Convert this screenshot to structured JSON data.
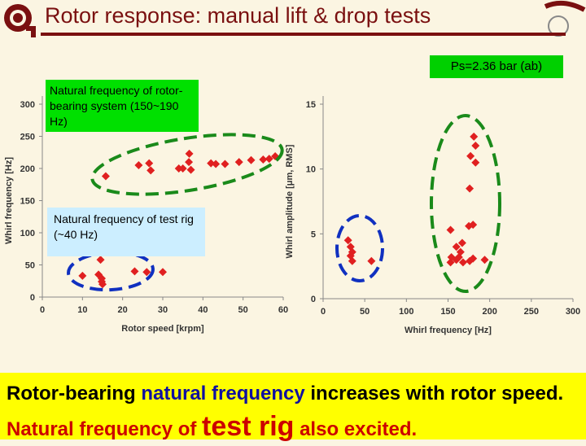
{
  "title": "Rotor response: manual lift & drop tests",
  "ps_label": "Ps=2.36 bar (ab)",
  "annotation_natural": "Natural frequency of rotor-bearing system (150~190 Hz)",
  "annotation_rig": "Natural frequency of test rig (~40 Hz)",
  "conclusion": {
    "part1": "Rotor-bearing ",
    "part2": "natural frequency",
    "part3": " increases with rotor speed. ",
    "part4": "Natural frequency of ",
    "part5": "test rig",
    "part6": " also excited."
  },
  "colors": {
    "title": "#7a1010",
    "marker": "#e02020",
    "ellipse_green": "#1a8a1a",
    "ellipse_blue": "#1030c0",
    "box_green": "#00e000",
    "box_blue": "#cceeff",
    "bottom": "#ffff00"
  },
  "chart_data": [
    {
      "type": "scatter",
      "xlabel": "Rotor speed [krpm]",
      "ylabel": "Whirl frequency [Hz]",
      "xlim": [
        0,
        60
      ],
      "ylim": [
        0,
        300
      ],
      "xticks": [
        "0",
        "10",
        "20",
        "30",
        "40",
        "50",
        "60"
      ],
      "yticks": [
        "0",
        "50",
        "100",
        "150",
        "200",
        "250",
        "300"
      ],
      "points": [
        [
          15.8,
          188
        ],
        [
          24,
          205
        ],
        [
          26.6,
          208
        ],
        [
          27,
          197
        ],
        [
          34,
          200
        ],
        [
          35,
          200
        ],
        [
          36.5,
          210
        ],
        [
          37,
          198
        ],
        [
          36.6,
          223
        ],
        [
          42,
          208
        ],
        [
          43.2,
          207
        ],
        [
          45.5,
          207
        ],
        [
          49,
          210
        ],
        [
          52,
          213
        ],
        [
          55,
          214
        ],
        [
          56.5,
          215
        ],
        [
          58,
          219
        ],
        [
          10,
          33
        ],
        [
          14,
          35
        ],
        [
          14.8,
          29
        ],
        [
          14.8,
          24
        ],
        [
          14.5,
          58
        ],
        [
          15,
          20
        ],
        [
          23,
          40
        ],
        [
          26,
          39
        ],
        [
          30,
          39
        ]
      ]
    },
    {
      "type": "scatter",
      "xlabel": "Whirl frequency [Hz]",
      "ylabel": "Whirl amplitude [μm, RMS]",
      "xlim": [
        0,
        300
      ],
      "ylim": [
        0,
        15
      ],
      "xticks": [
        "0",
        "50",
        "100",
        "150",
        "200",
        "250",
        "300"
      ],
      "yticks": [
        "0",
        "5",
        "10",
        "15"
      ],
      "points": [
        [
          30,
          4.5
        ],
        [
          33,
          4
        ],
        [
          35,
          3.6
        ],
        [
          33,
          3.3
        ],
        [
          35,
          2.9
        ],
        [
          58,
          2.9
        ],
        [
          153,
          5.3
        ],
        [
          165,
          3.6
        ],
        [
          160,
          4.0
        ],
        [
          167,
          4.3
        ],
        [
          154,
          3.2
        ],
        [
          153,
          2.8
        ],
        [
          163,
          3.2
        ],
        [
          160,
          3.0
        ],
        [
          168,
          2.8
        ],
        [
          176,
          2.9
        ],
        [
          180,
          3.1
        ],
        [
          194,
          3.0
        ],
        [
          175,
          5.6
        ],
        [
          180,
          5.7
        ],
        [
          176,
          8.5
        ],
        [
          183,
          10.5
        ],
        [
          177,
          11.0
        ],
        [
          183,
          11.8
        ],
        [
          181,
          12.5
        ]
      ]
    }
  ]
}
